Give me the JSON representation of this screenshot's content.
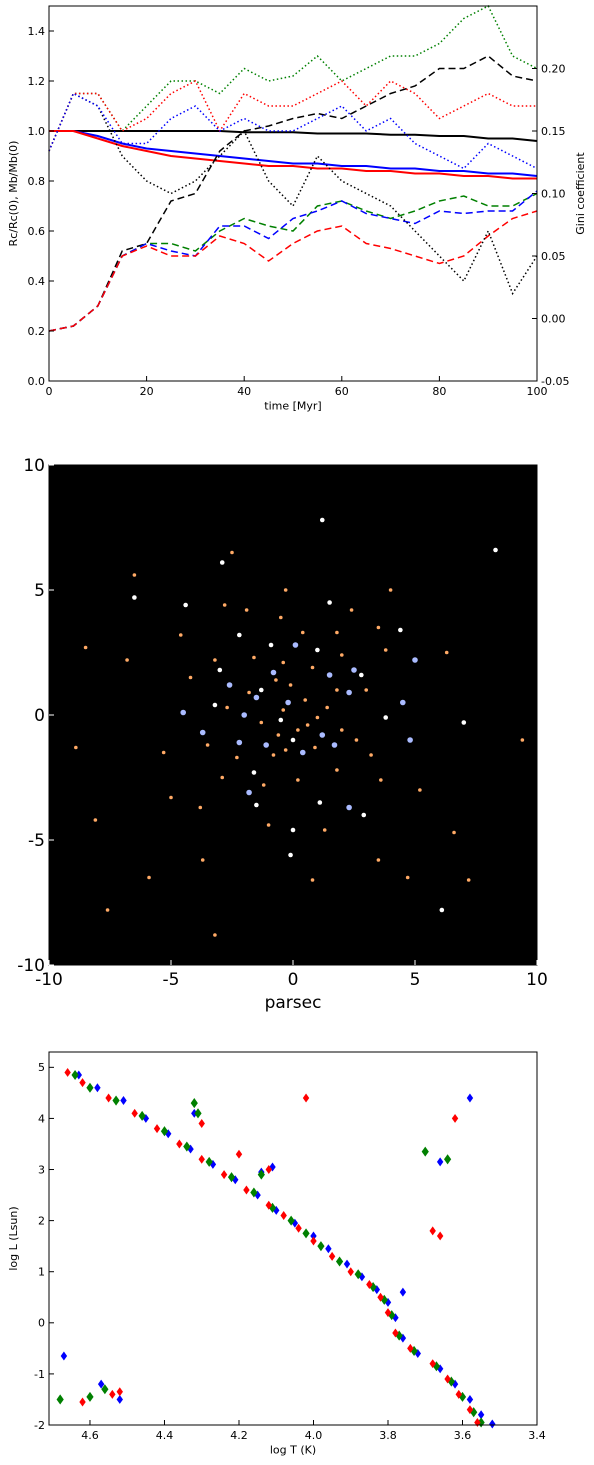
{
  "chart_data": [
    {
      "type": "line",
      "xlabel": "time [Myr]",
      "ylabel": "Rc/Rc(0), Mb/Mb(0)",
      "y2label": "Gini coefficient",
      "x": [
        0,
        5,
        10,
        15,
        20,
        25,
        30,
        35,
        40,
        45,
        50,
        55,
        60,
        65,
        70,
        75,
        80,
        85,
        90,
        95,
        100
      ],
      "xlim": [
        0,
        100
      ],
      "xticks": [
        0,
        20,
        40,
        60,
        80,
        100
      ],
      "ylim": [
        0,
        1.5
      ],
      "yticks": [
        {
          "value": 0,
          "label": "0.0"
        },
        0.2,
        0.4,
        0.6,
        0.8,
        {
          "value": 1,
          "label": "1.0"
        },
        1.2,
        1.4
      ],
      "y2lim": [
        -0.05,
        0.25
      ],
      "y2ticks": [
        -0.05,
        {
          "value": 0,
          "label": "0.00"
        },
        0.05,
        {
          "value": 0.1,
          "label": "0.10"
        },
        0.15,
        {
          "value": 0.2,
          "label": "0.20"
        }
      ],
      "series": [
        {
          "color": "#000000",
          "style": "solid",
          "values": [
            1,
            1,
            1,
            1,
            1,
            1,
            1,
            1,
            0.995,
            0.995,
            0.995,
            0.99,
            0.99,
            0.99,
            0.985,
            0.985,
            0.98,
            0.98,
            0.97,
            0.97,
            0.96
          ]
        },
        {
          "color": "#0000ff",
          "style": "solid",
          "values": [
            1,
            1,
            0.98,
            0.95,
            0.93,
            0.92,
            0.91,
            0.9,
            0.89,
            0.88,
            0.87,
            0.87,
            0.86,
            0.86,
            0.85,
            0.85,
            0.84,
            0.84,
            0.83,
            0.83,
            0.82
          ]
        },
        {
          "color": "#ff0000",
          "style": "solid",
          "values": [
            1,
            1,
            0.97,
            0.94,
            0.92,
            0.9,
            0.89,
            0.88,
            0.87,
            0.86,
            0.86,
            0.85,
            0.85,
            0.84,
            0.84,
            0.83,
            0.83,
            0.82,
            0.82,
            0.81,
            0.81
          ]
        },
        {
          "color": "#000000",
          "style": "dashed",
          "axis": "y2",
          "values": [
            -0.01,
            -0.006,
            0.01,
            0.054,
            0.06,
            0.094,
            0.1,
            0.134,
            0.15,
            0.154,
            0.16,
            0.164,
            0.16,
            0.17,
            0.18,
            0.186,
            0.2,
            0.2,
            0.21,
            0.194,
            0.19
          ]
        },
        {
          "color": "#008000",
          "style": "dashed",
          "axis": "y2",
          "values": [
            -0.01,
            -0.006,
            0.01,
            0.05,
            0.06,
            0.06,
            0.054,
            0.07,
            0.08,
            0.074,
            0.07,
            0.09,
            0.094,
            0.086,
            0.08,
            0.086,
            0.094,
            0.098,
            0.09,
            0.09,
            0.1
          ]
        },
        {
          "color": "#0000ff",
          "style": "dashed",
          "axis": "y2",
          "values": [
            -0.01,
            -0.006,
            0.01,
            0.05,
            0.06,
            0.054,
            0.05,
            0.074,
            0.074,
            0.064,
            0.08,
            0.086,
            0.094,
            0.084,
            0.08,
            0.076,
            0.086,
            0.084,
            0.086,
            0.086,
            0.102
          ]
        },
        {
          "color": "#ff0000",
          "style": "dashed",
          "axis": "y2",
          "values": [
            -0.01,
            -0.006,
            0.01,
            0.05,
            0.058,
            0.05,
            0.05,
            0.066,
            0.06,
            0.046,
            0.06,
            0.07,
            0.074,
            0.06,
            0.056,
            0.05,
            0.044,
            0.05,
            0.066,
            0.08,
            0.086
          ]
        },
        {
          "color": "#000000",
          "style": "dotted",
          "values": [
            0.92,
            1.15,
            1.1,
            0.9,
            0.8,
            0.75,
            0.8,
            0.9,
            1.0,
            0.8,
            0.7,
            0.9,
            0.8,
            0.75,
            0.7,
            0.6,
            0.5,
            0.4,
            0.6,
            0.35,
            0.5
          ]
        },
        {
          "color": "#008000",
          "style": "dotted",
          "values": [
            0.92,
            1.15,
            1.15,
            1.0,
            1.1,
            1.2,
            1.2,
            1.15,
            1.25,
            1.2,
            1.22,
            1.3,
            1.2,
            1.25,
            1.3,
            1.3,
            1.35,
            1.45,
            1.5,
            1.3,
            1.25
          ]
        },
        {
          "color": "#ff0000",
          "style": "dotted",
          "values": [
            0.92,
            1.15,
            1.15,
            1.0,
            1.05,
            1.15,
            1.2,
            1.0,
            1.15,
            1.1,
            1.1,
            1.15,
            1.2,
            1.1,
            1.2,
            1.15,
            1.05,
            1.1,
            1.15,
            1.1,
            1.1
          ]
        },
        {
          "color": "#0000ff",
          "style": "dotted",
          "values": [
            0.92,
            1.15,
            1.1,
            0.95,
            0.95,
            1.05,
            1.1,
            1.0,
            1.05,
            1.0,
            1.0,
            1.05,
            1.1,
            1.0,
            1.05,
            0.95,
            0.9,
            0.85,
            0.95,
            0.9,
            0.85
          ]
        }
      ]
    },
    {
      "type": "scatter",
      "xlabel": "parsec",
      "background": "#000000",
      "xlim": [
        -10,
        10
      ],
      "xticks": [
        -10,
        -5,
        0,
        5,
        10
      ],
      "ylim": [
        -10,
        10
      ],
      "yticks": [
        -10,
        -5,
        0,
        5,
        10
      ],
      "series": [
        {
          "color": "#ffaa66",
          "marker": "circle",
          "marker_size": 1.8,
          "x": [
            -8.5,
            -8.1,
            -8.9,
            -3.7,
            -3.8,
            -4.6,
            -2.8,
            -2.5,
            -0.3,
            2.4,
            3.5,
            3.8,
            1.8,
            -0.5,
            -1.6,
            -0.4,
            0.8,
            2.0,
            3.0,
            1.4,
            -0.1,
            -0.7,
            -1.3,
            0.6,
            -0.8,
            -0.3,
            0.9,
            2.0,
            3.2,
            3.6,
            1.8,
            0.2,
            -1.2,
            -2.9,
            -3.5,
            -2.7,
            -3.2,
            -4.2,
            -5.3,
            -5.0,
            -1.0,
            1.3,
            3.5,
            -6.5,
            -5.9,
            6.6,
            5.2,
            6.3,
            9.4,
            4.7,
            0.5,
            -0.4,
            1.0,
            -1.8,
            0.2,
            -0.6,
            1.8,
            -2.3,
            2.6,
            0.4,
            -1.9,
            -6.8,
            4.0,
            7.2,
            -7.6,
            0.8,
            -3.2
          ],
          "y": [
            2.7,
            -4.2,
            -1.3,
            -5.8,
            -3.7,
            3.2,
            4.4,
            6.5,
            5.0,
            4.2,
            3.5,
            2.6,
            3.3,
            3.9,
            2.3,
            2.1,
            1.9,
            2.4,
            1.0,
            0.3,
            1.2,
            1.4,
            -0.3,
            -0.4,
            -1.6,
            -1.4,
            -1.3,
            -0.6,
            -1.6,
            -2.6,
            -2.2,
            -2.6,
            -2.8,
            -2.5,
            -1.2,
            0.3,
            2.2,
            1.5,
            -1.5,
            -3.3,
            -4.4,
            -4.6,
            -5.8,
            5.6,
            -6.5,
            -4.7,
            -3.0,
            2.5,
            -1.0,
            -6.5,
            0.6,
            0.2,
            -0.1,
            0.9,
            -0.6,
            -0.8,
            1.0,
            -1.7,
            -1.0,
            3.3,
            4.2,
            2.2,
            5.0,
            -6.6,
            -7.8,
            -6.6,
            -8.8
          ]
        },
        {
          "color": "#ffffff",
          "marker": "circle",
          "marker_size": 2.3,
          "x": [
            1.2,
            8.3,
            -2.9,
            -6.5,
            -4.4,
            1.5,
            -2.2,
            4.4,
            -0.9,
            1.0,
            -3.0,
            3.8,
            -0.5,
            7.0,
            -3.2,
            2.8,
            0.0,
            -1.6,
            -1.5,
            1.1,
            0.0,
            6.1,
            -0.1,
            2.9,
            -1.3
          ],
          "y": [
            7.8,
            6.6,
            6.1,
            4.7,
            4.4,
            4.5,
            3.2,
            3.4,
            2.8,
            2.6,
            1.8,
            -0.1,
            -0.2,
            -0.3,
            0.4,
            1.6,
            -1.0,
            -2.3,
            -3.6,
            -3.5,
            -4.6,
            -7.8,
            -5.6,
            -4.0,
            1.0
          ]
        },
        {
          "color": "#aabbff",
          "marker": "circle",
          "marker_size": 2.8,
          "x": [
            0.1,
            -0.8,
            1.5,
            2.5,
            5.0,
            -2.6,
            2.3,
            -4.5,
            -1.5,
            -0.2,
            1.2,
            -3.7,
            -2.2,
            1.7,
            0.4,
            4.5,
            -1.1,
            -1.8,
            2.3,
            4.8,
            -2.0
          ],
          "y": [
            2.8,
            1.7,
            1.6,
            1.8,
            2.2,
            1.2,
            0.9,
            0.1,
            0.7,
            0.5,
            -0.8,
            -0.7,
            -1.1,
            -1.2,
            -1.5,
            0.5,
            -1.2,
            -3.1,
            -3.7,
            -1.0,
            0.0
          ]
        }
      ]
    },
    {
      "type": "scatter",
      "xlabel": "log T (K)",
      "ylabel": "log L (Lsun)",
      "xlim": [
        4.71,
        3.4
      ],
      "xticks": [
        4.6,
        4.4,
        4.2,
        {
          "value": 4,
          "label": "4.0"
        },
        3.8,
        3.6,
        3.4
      ],
      "ylim": [
        -2,
        5.3
      ],
      "yticks": [
        -2,
        -1,
        0,
        1,
        2,
        3,
        4,
        5
      ],
      "series": [
        {
          "color": "#0000ff",
          "marker": "diamond",
          "marker_size": 3.2,
          "x": [
            4.63,
            4.58,
            4.51,
            4.45,
            4.39,
            4.33,
            4.27,
            4.21,
            4.15,
            4.1,
            4.05,
            4.0,
            3.96,
            3.91,
            3.87,
            3.83,
            3.8,
            3.78,
            3.76,
            3.72,
            3.66,
            3.62,
            3.58,
            3.55,
            3.52,
            4.32,
            4.14,
            4.11,
            3.58,
            3.76,
            3.66,
            4.67,
            4.57,
            4.52
          ],
          "y": [
            4.85,
            4.6,
            4.35,
            4.0,
            3.7,
            3.4,
            3.1,
            2.8,
            2.5,
            2.2,
            1.95,
            1.7,
            1.45,
            1.15,
            0.9,
            0.65,
            0.4,
            0.1,
            -0.3,
            -0.6,
            -0.9,
            -1.2,
            -1.5,
            -1.8,
            -1.98,
            4.1,
            2.95,
            3.05,
            4.4,
            0.6,
            3.15,
            -0.65,
            -1.2,
            -1.5
          ]
        },
        {
          "color": "#008000",
          "marker": "diamond",
          "marker_size": 3.6,
          "x": [
            4.64,
            4.6,
            4.53,
            4.46,
            4.4,
            4.34,
            4.28,
            4.22,
            4.16,
            4.11,
            4.06,
            4.02,
            3.98,
            3.93,
            3.88,
            3.84,
            3.81,
            3.79,
            3.77,
            3.73,
            3.67,
            3.63,
            3.6,
            3.57,
            3.55,
            4.31,
            4.32,
            4.14,
            3.7,
            3.64,
            4.68,
            4.6,
            4.56
          ],
          "y": [
            4.85,
            4.6,
            4.35,
            4.05,
            3.75,
            3.45,
            3.15,
            2.85,
            2.55,
            2.25,
            2.0,
            1.75,
            1.5,
            1.2,
            0.95,
            0.7,
            0.45,
            0.15,
            -0.25,
            -0.55,
            -0.85,
            -1.15,
            -1.45,
            -1.75,
            -1.95,
            4.1,
            4.3,
            2.9,
            3.35,
            3.2,
            -1.5,
            -1.45,
            -1.3
          ]
        },
        {
          "color": "#ff0000",
          "marker": "diamond",
          "marker_size": 3.2,
          "x": [
            4.66,
            4.62,
            4.55,
            4.48,
            4.42,
            4.36,
            4.3,
            4.24,
            4.18,
            4.12,
            4.08,
            4.04,
            4.0,
            3.95,
            3.9,
            3.85,
            3.82,
            3.8,
            3.78,
            3.74,
            3.68,
            3.64,
            3.61,
            3.58,
            3.56,
            4.3,
            4.2,
            4.12,
            4.02,
            3.62,
            3.68,
            3.66,
            4.52,
            4.62,
            4.54
          ],
          "y": [
            4.9,
            4.7,
            4.4,
            4.1,
            3.8,
            3.5,
            3.2,
            2.9,
            2.6,
            2.3,
            2.1,
            1.85,
            1.6,
            1.3,
            1.0,
            0.75,
            0.5,
            0.2,
            -0.2,
            -0.5,
            -0.8,
            -1.1,
            -1.4,
            -1.7,
            -1.95,
            3.9,
            3.3,
            3.0,
            4.4,
            4.0,
            1.8,
            1.7,
            -1.35,
            -1.55,
            -1.4
          ]
        }
      ]
    }
  ]
}
